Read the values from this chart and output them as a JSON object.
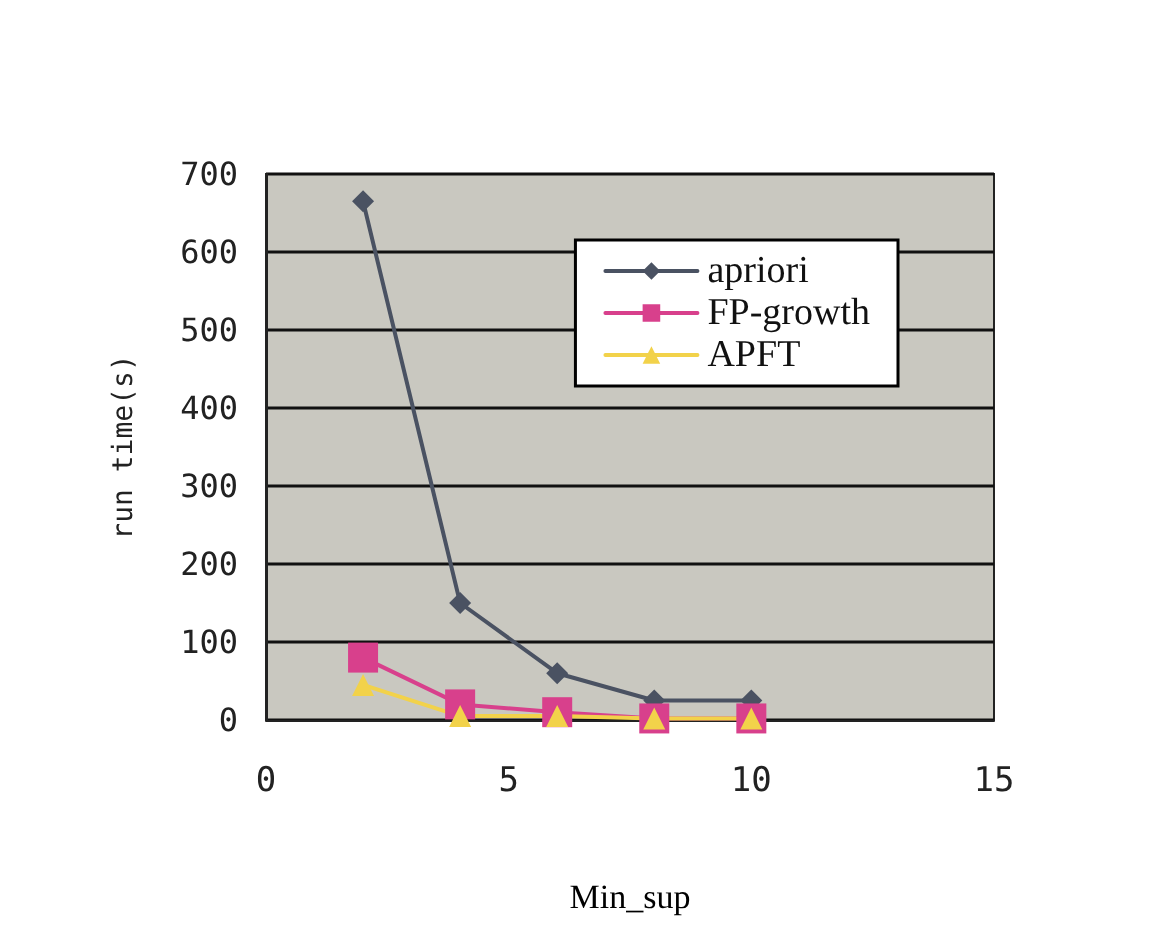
{
  "chart_data": {
    "type": "line",
    "xlabel": "Min_sup",
    "ylabel": "run time(s)",
    "x": [
      2,
      4,
      6,
      8,
      10
    ],
    "series": [
      {
        "name": "apriori",
        "color": "#4a5262",
        "marker": "diamond",
        "values": [
          665,
          150,
          60,
          25,
          25
        ]
      },
      {
        "name": "FP-growth",
        "color": "#d8408c",
        "marker": "square",
        "values": [
          80,
          20,
          10,
          2,
          2
        ]
      },
      {
        "name": "APFT",
        "color": "#f2d24a",
        "marker": "triangle",
        "values": [
          45,
          5,
          5,
          2,
          2
        ]
      }
    ],
    "xlim": [
      0,
      15
    ],
    "xticks": [
      0,
      5,
      10,
      15
    ],
    "ylim": [
      0,
      700
    ],
    "yticks": [
      0,
      100,
      200,
      300,
      400,
      500,
      600,
      700
    ],
    "grid": "y",
    "legend": "top right",
    "line_style": "solid"
  }
}
